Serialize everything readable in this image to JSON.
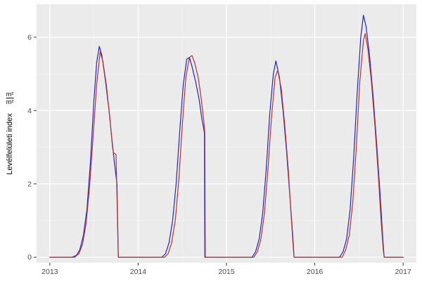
{
  "figure": {
    "bg": "#ffffff",
    "panel_bg": "#ebebeb",
    "grid_major_color": "#ffffff",
    "grid_minor_color": "#f7f7f7",
    "tick_color": "#333333",
    "tick_label_color": "#4d4d4d"
  },
  "chart_data": {
    "type": "line",
    "title": "",
    "xlabel": "",
    "ylabel": "Levélfelületi index m²/m²",
    "ylabel_text": "Levélfelületi index",
    "ylabel_unit_numerator": "m²",
    "ylabel_unit_denominator": "m²",
    "xlim": [
      2012.85,
      2017.15
    ],
    "ylim": [
      -0.15,
      6.9
    ],
    "x_ticks": [
      2013,
      2014,
      2015,
      2016,
      2017
    ],
    "x_tick_labels": [
      "2013",
      "2014",
      "2015",
      "2016",
      "2017"
    ],
    "y_ticks": [
      0,
      2,
      4,
      6
    ],
    "y_tick_labels": [
      "0",
      "2",
      "4",
      "6"
    ],
    "x_minor": [
      2013.5,
      2014.5,
      2015.5,
      2016.5
    ],
    "y_minor": [
      1,
      3,
      5
    ],
    "grid": true,
    "legend": "none",
    "series": [
      {
        "name": "series-blue",
        "color": "#2323cc",
        "points": [
          [
            2013.0,
            0
          ],
          [
            2013.25,
            0
          ],
          [
            2013.3,
            0.05
          ],
          [
            2013.34,
            0.2
          ],
          [
            2013.38,
            0.6
          ],
          [
            2013.42,
            1.3
          ],
          [
            2013.46,
            2.6
          ],
          [
            2013.5,
            4.3
          ],
          [
            2013.53,
            5.3
          ],
          [
            2013.56,
            5.75
          ],
          [
            2013.59,
            5.5
          ],
          [
            2013.63,
            4.8
          ],
          [
            2013.67,
            4.0
          ],
          [
            2013.7,
            3.3
          ],
          [
            2013.73,
            2.6
          ],
          [
            2013.76,
            2.0
          ],
          [
            2013.775,
            0
          ],
          [
            2014.27,
            0
          ],
          [
            2014.31,
            0.1
          ],
          [
            2014.35,
            0.4
          ],
          [
            2014.39,
            1.0
          ],
          [
            2014.43,
            2.0
          ],
          [
            2014.47,
            3.4
          ],
          [
            2014.51,
            4.7
          ],
          [
            2014.55,
            5.4
          ],
          [
            2014.58,
            5.45
          ],
          [
            2014.61,
            5.2
          ],
          [
            2014.65,
            4.8
          ],
          [
            2014.69,
            4.3
          ],
          [
            2014.72,
            3.8
          ],
          [
            2014.75,
            3.4
          ],
          [
            2014.755,
            0
          ],
          [
            2015.29,
            0
          ],
          [
            2015.33,
            0.15
          ],
          [
            2015.37,
            0.5
          ],
          [
            2015.41,
            1.2
          ],
          [
            2015.45,
            2.4
          ],
          [
            2015.49,
            3.9
          ],
          [
            2015.53,
            5.0
          ],
          [
            2015.56,
            5.35
          ],
          [
            2015.6,
            4.9
          ],
          [
            2015.64,
            4.0
          ],
          [
            2015.68,
            2.9
          ],
          [
            2015.72,
            1.6
          ],
          [
            2015.75,
            0.6
          ],
          [
            2015.765,
            0
          ],
          [
            2016.28,
            0
          ],
          [
            2016.32,
            0.15
          ],
          [
            2016.36,
            0.5
          ],
          [
            2016.4,
            1.3
          ],
          [
            2016.44,
            2.7
          ],
          [
            2016.48,
            4.5
          ],
          [
            2016.52,
            6.0
          ],
          [
            2016.55,
            6.6
          ],
          [
            2016.58,
            6.3
          ],
          [
            2016.62,
            5.5
          ],
          [
            2016.66,
            4.4
          ],
          [
            2016.7,
            3.1
          ],
          [
            2016.74,
            1.7
          ],
          [
            2016.77,
            0.5
          ],
          [
            2016.785,
            0
          ],
          [
            2017.0,
            0
          ]
        ]
      },
      {
        "name": "series-red",
        "color": "#b23333",
        "points": [
          [
            2013.0,
            0
          ],
          [
            2013.28,
            0
          ],
          [
            2013.33,
            0.1
          ],
          [
            2013.37,
            0.35
          ],
          [
            2013.41,
            0.9
          ],
          [
            2013.45,
            1.9
          ],
          [
            2013.49,
            3.3
          ],
          [
            2013.53,
            4.7
          ],
          [
            2013.57,
            5.6
          ],
          [
            2013.6,
            5.35
          ],
          [
            2013.64,
            4.7
          ],
          [
            2013.68,
            3.8
          ],
          [
            2013.71,
            3.0
          ],
          [
            2013.72,
            2.85
          ],
          [
            2013.75,
            2.8
          ],
          [
            2013.775,
            0
          ],
          [
            2014.3,
            0
          ],
          [
            2014.34,
            0.1
          ],
          [
            2014.38,
            0.4
          ],
          [
            2014.42,
            1.0
          ],
          [
            2014.46,
            2.1
          ],
          [
            2014.5,
            3.6
          ],
          [
            2014.54,
            4.9
          ],
          [
            2014.58,
            5.45
          ],
          [
            2014.61,
            5.5
          ],
          [
            2014.64,
            5.3
          ],
          [
            2014.68,
            4.9
          ],
          [
            2014.71,
            4.4
          ],
          [
            2014.74,
            3.8
          ],
          [
            2014.755,
            3.4
          ],
          [
            2014.76,
            0
          ],
          [
            2015.31,
            0
          ],
          [
            2015.35,
            0.15
          ],
          [
            2015.39,
            0.5
          ],
          [
            2015.43,
            1.2
          ],
          [
            2015.47,
            2.4
          ],
          [
            2015.51,
            3.8
          ],
          [
            2015.55,
            4.9
          ],
          [
            2015.58,
            5.1
          ],
          [
            2015.62,
            4.6
          ],
          [
            2015.66,
            3.6
          ],
          [
            2015.7,
            2.4
          ],
          [
            2015.73,
            1.2
          ],
          [
            2015.755,
            0.3
          ],
          [
            2015.765,
            0
          ],
          [
            2016.31,
            0
          ],
          [
            2016.35,
            0.2
          ],
          [
            2016.39,
            0.6
          ],
          [
            2016.43,
            1.5
          ],
          [
            2016.47,
            3.0
          ],
          [
            2016.51,
            4.8
          ],
          [
            2016.55,
            5.9
          ],
          [
            2016.57,
            6.1
          ],
          [
            2016.6,
            5.7
          ],
          [
            2016.64,
            4.8
          ],
          [
            2016.68,
            3.6
          ],
          [
            2016.72,
            2.2
          ],
          [
            2016.75,
            1.0
          ],
          [
            2016.775,
            0.2
          ],
          [
            2016.785,
            0
          ],
          [
            2017.0,
            0
          ]
        ]
      }
    ]
  }
}
